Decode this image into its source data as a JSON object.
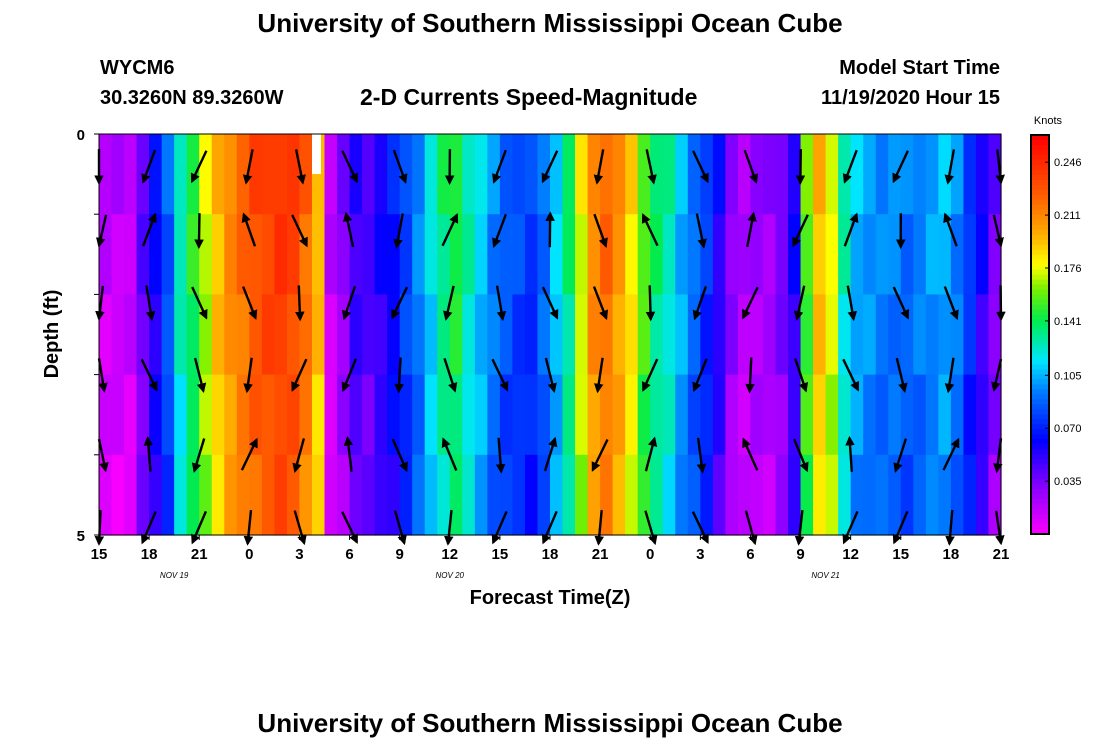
{
  "header": {
    "title": "University of Southern Mississippi Ocean Cube",
    "station_id": "WYCM6",
    "station_coords": "30.3260N 89.3260W",
    "chart_title": "2-D Currents Speed-Magnitude",
    "start_label": "Model Start Time",
    "start_value": "11/19/2020 Hour 15"
  },
  "footer": {
    "title": "University of Southern Mississippi Ocean Cube"
  },
  "chart_data": {
    "type": "heatmap",
    "title": "2-D Currents Speed-Magnitude",
    "xlabel": "Forecast Time(Z)",
    "ylabel": "Depth (ft)",
    "x_ticks": [
      "15",
      "18",
      "21",
      "0",
      "3",
      "6",
      "9",
      "12",
      "15",
      "18",
      "21",
      "0",
      "3",
      "6",
      "9",
      "12",
      "15",
      "18",
      "21"
    ],
    "x_tick_hours": [
      0,
      3,
      6,
      9,
      12,
      15,
      18,
      21,
      24,
      27,
      30,
      33,
      36,
      39,
      42,
      45,
      48,
      51,
      54
    ],
    "date_labels": [
      {
        "text": "NOV 19",
        "hour": 4.5
      },
      {
        "text": "NOV 20",
        "hour": 21
      },
      {
        "text": "NOV 21",
        "hour": 43.5
      }
    ],
    "y_tick_labels": [
      "0",
      "5"
    ],
    "ylim": [
      0,
      5
    ],
    "xlim": [
      0,
      54
    ],
    "colorbar": {
      "unit": "Knots",
      "tick_labels": [
        "0.246",
        "0.211",
        "0.176",
        "0.141",
        "0.105",
        "0.070",
        "0.035"
      ],
      "tick_values": [
        0.246,
        0.211,
        0.176,
        0.141,
        0.105,
        0.07,
        0.035
      ],
      "range": [
        0.0,
        0.264
      ]
    },
    "speed_profile_knots": [
      0.02,
      0.02,
      0.02,
      0.045,
      0.065,
      0.09,
      0.13,
      0.15,
      0.175,
      0.2,
      0.215,
      0.225,
      0.235,
      0.24,
      0.245,
      0.24,
      0.225,
      0.2,
      0.02,
      0.035,
      0.055,
      0.05,
      0.06,
      0.07,
      0.085,
      0.1,
      0.12,
      0.14,
      0.15,
      0.13,
      0.115,
      0.1,
      0.09,
      0.085,
      0.08,
      0.095,
      0.115,
      0.14,
      0.18,
      0.215,
      0.225,
      0.21,
      0.19,
      0.16,
      0.14,
      0.13,
      0.11,
      0.095,
      0.08,
      0.06,
      0.035,
      0.025,
      0.03,
      0.03,
      0.04,
      0.06,
      0.16,
      0.2,
      0.18,
      0.13,
      0.11,
      0.105,
      0.1,
      0.1,
      0.095,
      0.1,
      0.105,
      0.11,
      0.1,
      0.08,
      0.06,
      0.04
    ],
    "vector_depths_ft": [
      0.4,
      1.2,
      2.1,
      3.0,
      4.0,
      4.9
    ],
    "vector_hours": [
      0,
      3,
      6,
      9,
      12,
      15,
      18,
      21,
      24,
      27,
      30,
      33,
      36,
      39,
      42,
      45,
      48,
      51,
      54
    ]
  }
}
